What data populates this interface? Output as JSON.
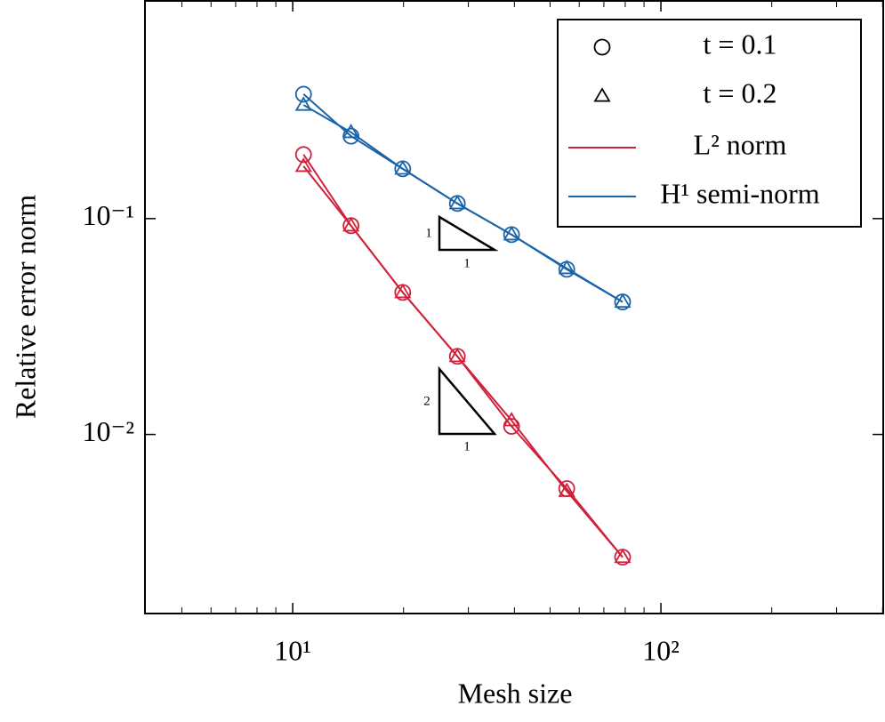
{
  "chart_data": {
    "type": "line",
    "x_label": "Mesh size",
    "y_label": "Relative error norm",
    "x_log": true,
    "y_log": true,
    "xlim": [
      3.97,
      401.6
    ],
    "ylim": [
      0.00148,
      1.02
    ],
    "xticks": [
      {
        "value": 10,
        "label": "10¹"
      },
      {
        "value": 100,
        "label": "10²"
      }
    ],
    "xminorticks": [
      5,
      6,
      7,
      8,
      9,
      20,
      30,
      40,
      50,
      60,
      70,
      80,
      90,
      200,
      300,
      400
    ],
    "yticks": [
      {
        "value": 0.01,
        "label": "10⁻²"
      },
      {
        "value": 0.1,
        "label": "10⁻¹"
      }
    ],
    "x": [
      10.7,
      14.4,
      19.9,
      28.0,
      39.3,
      55.5,
      78.7
    ],
    "legend_position": "upper right",
    "legend": [
      {
        "label": "t = 0.1",
        "marker": "circle"
      },
      {
        "label": "t = 0.2",
        "marker": "triangle"
      },
      {
        "label": "L² norm",
        "color": "#d0213a"
      },
      {
        "label": "H¹ semi-norm",
        "color": "#1a64a8"
      }
    ],
    "series": [
      {
        "color": "#1a64a8",
        "marker": "circle",
        "values": [
          0.377,
          0.241,
          0.17,
          0.1175,
          0.0843,
          0.0582,
          0.0411
        ]
      },
      {
        "color": "#1a64a8",
        "marker": "triangle",
        "values": [
          0.336,
          0.251,
          0.17,
          0.1175,
          0.0843,
          0.0588,
          0.0411
        ]
      },
      {
        "color": "#d0213a",
        "marker": "circle",
        "values": [
          0.198,
          0.0927,
          0.0455,
          0.023,
          0.0109,
          0.00561,
          0.0027
        ]
      },
      {
        "color": "#d0213a",
        "marker": "triangle",
        "values": [
          0.175,
          0.0927,
          0.0455,
          0.023,
          0.0116,
          0.00546,
          0.0027
        ]
      }
    ],
    "annotations": [
      {
        "rise": "1",
        "run": "1"
      },
      {
        "rise": "2",
        "run": "1"
      }
    ]
  }
}
